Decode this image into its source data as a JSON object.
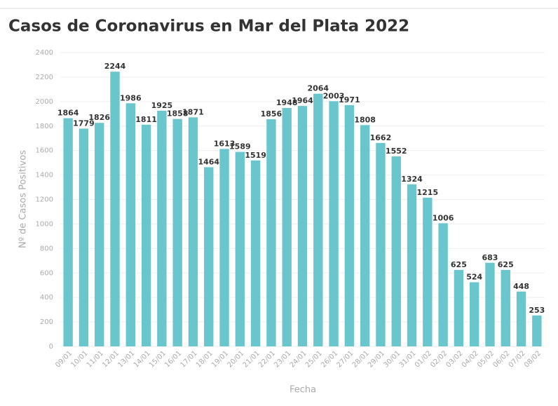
{
  "chart_data": {
    "type": "bar",
    "title": "Casos de Coronavirus en Mar del Plata 2022",
    "x_label": "Fecha",
    "y_label": "Nº de Casos Positivos",
    "categories": [
      "09/01",
      "10/01",
      "11/01",
      "12/01",
      "13/01",
      "14/01",
      "15/01",
      "16/01",
      "17/01",
      "18/01",
      "19/01",
      "20/01",
      "21/01",
      "22/01",
      "23/01",
      "24/01",
      "25/01",
      "26/01",
      "27/01",
      "28/01",
      "29/01",
      "30/01",
      "31/01",
      "01/02",
      "02/02",
      "03/02",
      "04/02",
      "05/02",
      "06/02",
      "07/02",
      "08/02"
    ],
    "values": [
      1864,
      1779,
      1826,
      2244,
      1986,
      1811,
      1925,
      1858,
      1871,
      1464,
      1613,
      1589,
      1519,
      1856,
      1948,
      1964,
      2064,
      2003,
      1971,
      1808,
      1662,
      1552,
      1324,
      1215,
      1006,
      625,
      524,
      683,
      625,
      448,
      253
    ],
    "color": "#68c6cc",
    "ylim": [
      0,
      2400
    ],
    "yticks": [
      0,
      200,
      400,
      600,
      800,
      1000,
      1200,
      1400,
      1600,
      1800,
      2000,
      2200,
      2400
    ],
    "grid": true
  }
}
